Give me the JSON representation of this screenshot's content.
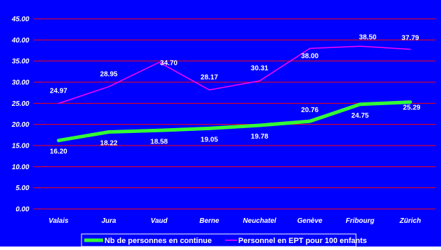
{
  "chart_data": {
    "type": "line",
    "categories": [
      "Valais",
      "Jura",
      "Vaud",
      "Berne",
      "Neuchatel",
      "Genève",
      "Fribourg",
      "Zürich"
    ],
    "series": [
      {
        "name": "Nb de personnes en continue",
        "values": [
          16.2,
          18.22,
          18.58,
          19.05,
          19.78,
          20.76,
          24.75,
          25.29
        ],
        "labels": [
          "16.20",
          "18.22",
          "18.58",
          "19.05",
          "19.78",
          "20.76",
          "24.75",
          "25.29"
        ],
        "color": "#33ff33"
      },
      {
        "name": "Personnel en EPT pour 100 enfants",
        "values": [
          24.97,
          28.95,
          34.7,
          28.17,
          30.31,
          38.0,
          38.5,
          37.79
        ],
        "labels": [
          "24.97",
          "28.95",
          "34.70",
          "28.17",
          "30.31",
          "38.00",
          "38.50",
          "37.79"
        ],
        "color": "#ff00ff"
      }
    ],
    "yticks": [
      "0.00",
      "5.00",
      "10.00",
      "15.00",
      "20.00",
      "25.00",
      "30.00",
      "35.00",
      "40.00",
      "45.00"
    ],
    "ylim": [
      0,
      45
    ],
    "grid": true,
    "gridColor": "#ff0000",
    "background": "#0000ff",
    "legendPlacement": "bottom"
  }
}
